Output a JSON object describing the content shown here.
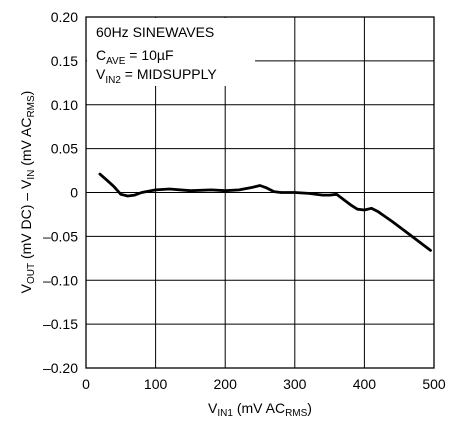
{
  "chart_data": {
    "type": "line",
    "xlim": [
      0,
      500
    ],
    "ylim": [
      -0.2,
      0.2
    ],
    "grid": true,
    "x_ticks": [
      "0",
      "100",
      "200",
      "300",
      "400",
      "500"
    ],
    "y_ticks": [
      "0.20",
      "0.15",
      "0.10",
      "0.05",
      "0",
      "–0.05",
      "–0.10",
      "–0.15",
      "–0.20"
    ],
    "annotations": {
      "line1": "60Hz SINEWAVES",
      "line2_main": "C",
      "line2_sub": "AVE",
      "line2_rest": " = 10µF",
      "line3_main": "V",
      "line3_sub": "IN2",
      "line3_rest": " = MIDSUPPLY"
    },
    "xlabel": {
      "main": "V",
      "sub": "IN1",
      "rest": " (mV AC",
      "sub2": "RMS",
      "end": ")"
    },
    "ylabel": {
      "p1": "V",
      "s1": "OUT",
      "p2": " (mV DC) – V",
      "s2": "IN",
      "p3": " (mV AC",
      "s3": "RMS",
      "p4": ")"
    },
    "series": [
      {
        "x": [
          20,
          30,
          40,
          50,
          60,
          70,
          80,
          100,
          120,
          150,
          180,
          200,
          220,
          240,
          250,
          260,
          270,
          280,
          300,
          320,
          340,
          350,
          360,
          370,
          380,
          390,
          400,
          410,
          420,
          440,
          460,
          480,
          495
        ],
        "y": [
          0.021,
          0.014,
          0.007,
          -0.002,
          -0.004,
          -0.003,
          0.0,
          0.003,
          0.004,
          0.002,
          0.003,
          0.002,
          0.003,
          0.006,
          0.008,
          0.005,
          0.001,
          0.0,
          0.0,
          -0.001,
          -0.003,
          -0.003,
          -0.002,
          -0.008,
          -0.014,
          -0.019,
          -0.02,
          -0.018,
          -0.022,
          -0.033,
          -0.045,
          -0.057,
          -0.066
        ]
      }
    ]
  }
}
